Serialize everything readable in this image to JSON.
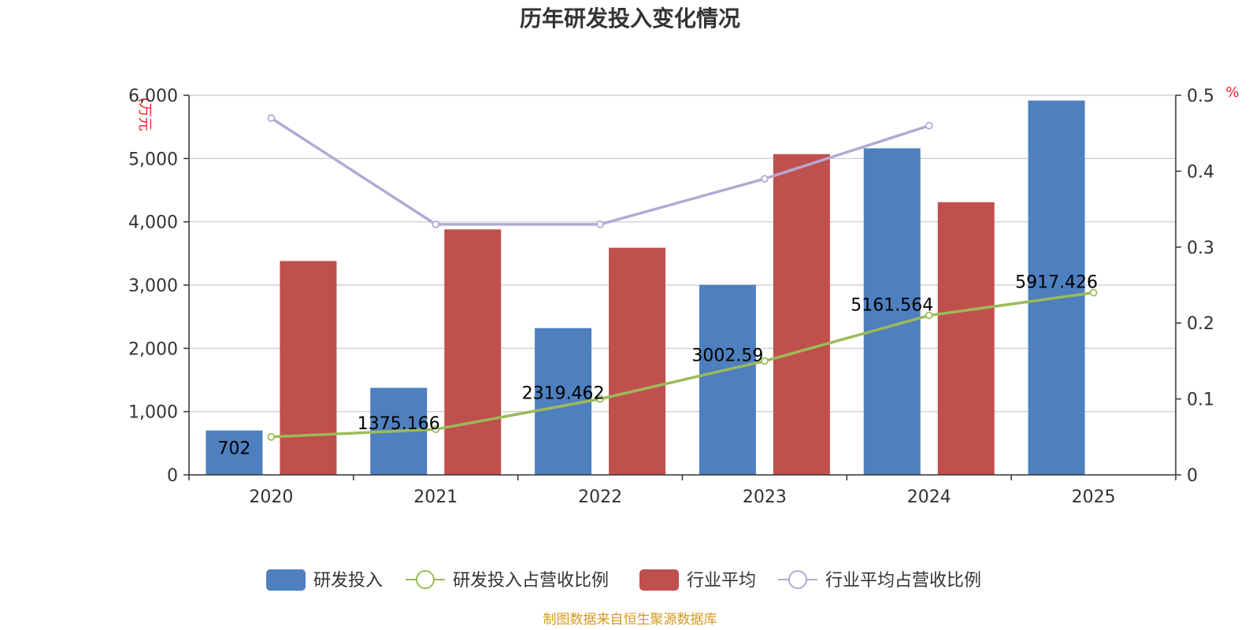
{
  "chart_data": {
    "type": "bar",
    "title": "历年研发投入变化情况",
    "categories": [
      "2020",
      "2021",
      "2022",
      "2023",
      "2024",
      "2025"
    ],
    "y_left": {
      "unit": "(万元",
      "ticks": [
        "0",
        "1,000",
        "2,000",
        "3,000",
        "4,000",
        "5,000",
        "6,000"
      ],
      "range": [
        0,
        6000
      ]
    },
    "y_right": {
      "unit": "%",
      "ticks": [
        "0",
        "0.1",
        "0.2",
        "0.3",
        "0.4",
        "0.5"
      ],
      "range": [
        0,
        0.5
      ]
    },
    "series": [
      {
        "name": "研发投入",
        "kind": "bar",
        "color": "#4e7fbf",
        "values": [
          702,
          1375.166,
          2319.462,
          3002.59,
          5161.564,
          5917.426
        ],
        "labels": [
          "702",
          "1375.166",
          "2319.462",
          "3002.59",
          "5161.564",
          "5917.426"
        ]
      },
      {
        "name": "研发投入占营收比例",
        "kind": "line",
        "axis": "right",
        "color": "#9bbb59",
        "values": [
          0.05,
          0.06,
          0.1,
          0.15,
          0.21,
          0.24
        ]
      },
      {
        "name": "行业平均",
        "kind": "bar",
        "color": "#c0504d",
        "values": [
          3380,
          3880,
          3590,
          5070,
          4310,
          null
        ]
      },
      {
        "name": "行业平均占营收比例",
        "kind": "line",
        "axis": "right",
        "color": "#b3a9d3",
        "values": [
          0.47,
          0.33,
          0.33,
          0.39,
          0.46,
          null
        ]
      }
    ],
    "grid": true,
    "legend_position": "bottom"
  },
  "source_note": "制图数据来自恒生聚源数据库",
  "colors": {
    "unit_red": "#e8202a",
    "source_gold": "#d49a1e",
    "grid": "#c8c8c8",
    "axis": "#333333"
  }
}
